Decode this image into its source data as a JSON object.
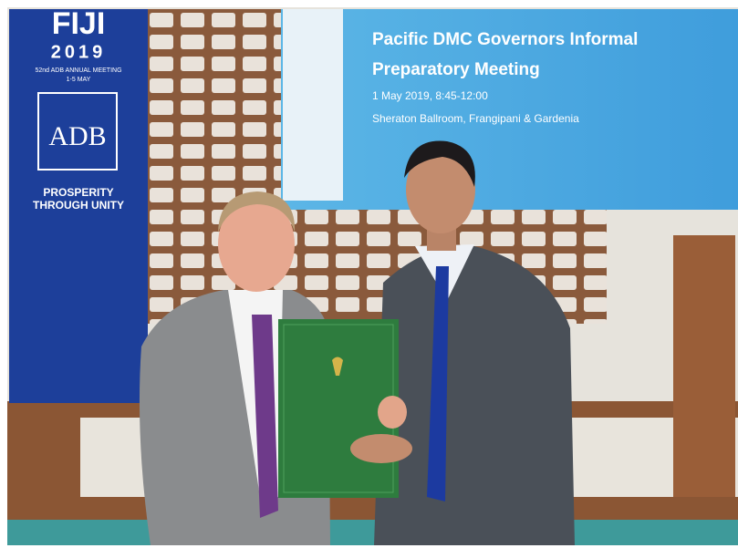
{
  "banner": {
    "title": "FIJI",
    "year": "2019",
    "event": "52nd ADB ANNUAL MEETING",
    "dates": "1-5 MAY",
    "logo": "ADB",
    "slogan_line1": "PROSPERITY",
    "slogan_line2": "THROUGH UNITY"
  },
  "screen": {
    "title_line1": "Pacific DMC Governors Informal",
    "title_line2": "Preparatory Meeting",
    "date": "1 May 2019, 8:45-12:00",
    "venue": "Sheraton Ballroom, Frangipani & Gardenia"
  }
}
